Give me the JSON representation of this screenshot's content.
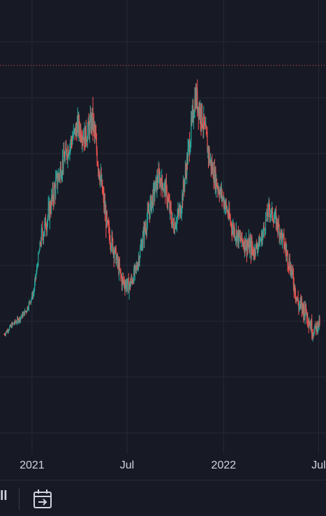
{
  "chart_data": {
    "type": "candlestick",
    "x_axis": {
      "tick_labels": [
        "2021",
        "Jul",
        "2022",
        "Jul"
      ]
    },
    "dates": [
      "2020-11-09",
      "2020-11-23",
      "2020-12-07",
      "2020-12-21",
      "2021-01-04",
      "2021-01-18",
      "2021-02-01",
      "2021-02-15",
      "2021-03-01",
      "2021-03-15",
      "2021-03-29",
      "2021-04-12",
      "2021-04-26",
      "2021-05-10",
      "2021-05-24",
      "2021-06-07",
      "2021-06-21",
      "2021-07-05",
      "2021-07-19",
      "2021-08-02",
      "2021-08-16",
      "2021-08-30",
      "2021-09-13",
      "2021-09-27",
      "2021-10-11",
      "2021-10-25",
      "2021-11-08",
      "2021-11-22",
      "2021-12-06",
      "2021-12-20",
      "2022-01-03",
      "2022-01-17",
      "2022-01-31",
      "2022-02-14",
      "2022-02-28",
      "2022-03-14",
      "2022-03-28",
      "2022-04-11",
      "2022-04-25",
      "2022-05-09",
      "2022-05-23",
      "2022-06-06",
      "2022-06-20",
      "2022-07-04"
    ],
    "closes": [
      0.02,
      0.05,
      0.07,
      0.1,
      0.16,
      0.34,
      0.42,
      0.52,
      0.6,
      0.66,
      0.72,
      0.68,
      0.74,
      0.56,
      0.38,
      0.3,
      0.2,
      0.18,
      0.24,
      0.36,
      0.46,
      0.55,
      0.5,
      0.38,
      0.44,
      0.62,
      0.82,
      0.74,
      0.6,
      0.52,
      0.46,
      0.38,
      0.34,
      0.32,
      0.3,
      0.34,
      0.44,
      0.4,
      0.33,
      0.24,
      0.12,
      0.1,
      0.03,
      0.06
    ],
    "highs": [
      0.04,
      0.07,
      0.1,
      0.13,
      0.2,
      0.44,
      0.52,
      0.62,
      0.68,
      0.74,
      0.8,
      0.76,
      0.85,
      0.64,
      0.46,
      0.36,
      0.26,
      0.25,
      0.32,
      0.46,
      0.56,
      0.62,
      0.58,
      0.46,
      0.54,
      0.72,
      0.94,
      0.86,
      0.68,
      0.6,
      0.54,
      0.46,
      0.41,
      0.4,
      0.36,
      0.4,
      0.5,
      0.47,
      0.4,
      0.28,
      0.18,
      0.14,
      0.08,
      0.09
    ],
    "lows": [
      0.0,
      0.02,
      0.05,
      0.07,
      0.12,
      0.26,
      0.32,
      0.42,
      0.5,
      0.56,
      0.6,
      0.56,
      0.6,
      0.44,
      0.28,
      0.22,
      0.12,
      0.12,
      0.18,
      0.28,
      0.38,
      0.46,
      0.4,
      0.3,
      0.36,
      0.5,
      0.7,
      0.64,
      0.5,
      0.44,
      0.38,
      0.3,
      0.26,
      0.22,
      0.24,
      0.26,
      0.36,
      0.32,
      0.24,
      0.12,
      0.02,
      0.0,
      -0.02,
      0.02
    ],
    "y_range": [
      -0.1,
      1.0
    ],
    "x_range": [
      "2020-11-01",
      "2022-07-15"
    ],
    "up_color": "#26a69a",
    "down_color": "#ef5350",
    "grid": true,
    "high_marker": "dotted horizontal line at the all-time high"
  },
  "toolbar": {
    "left_text": "ll",
    "icon": "calendar-goto-date-icon"
  },
  "colors": {
    "background": "#171a25",
    "grid": "#252a36",
    "high_line": "#ef5350"
  }
}
